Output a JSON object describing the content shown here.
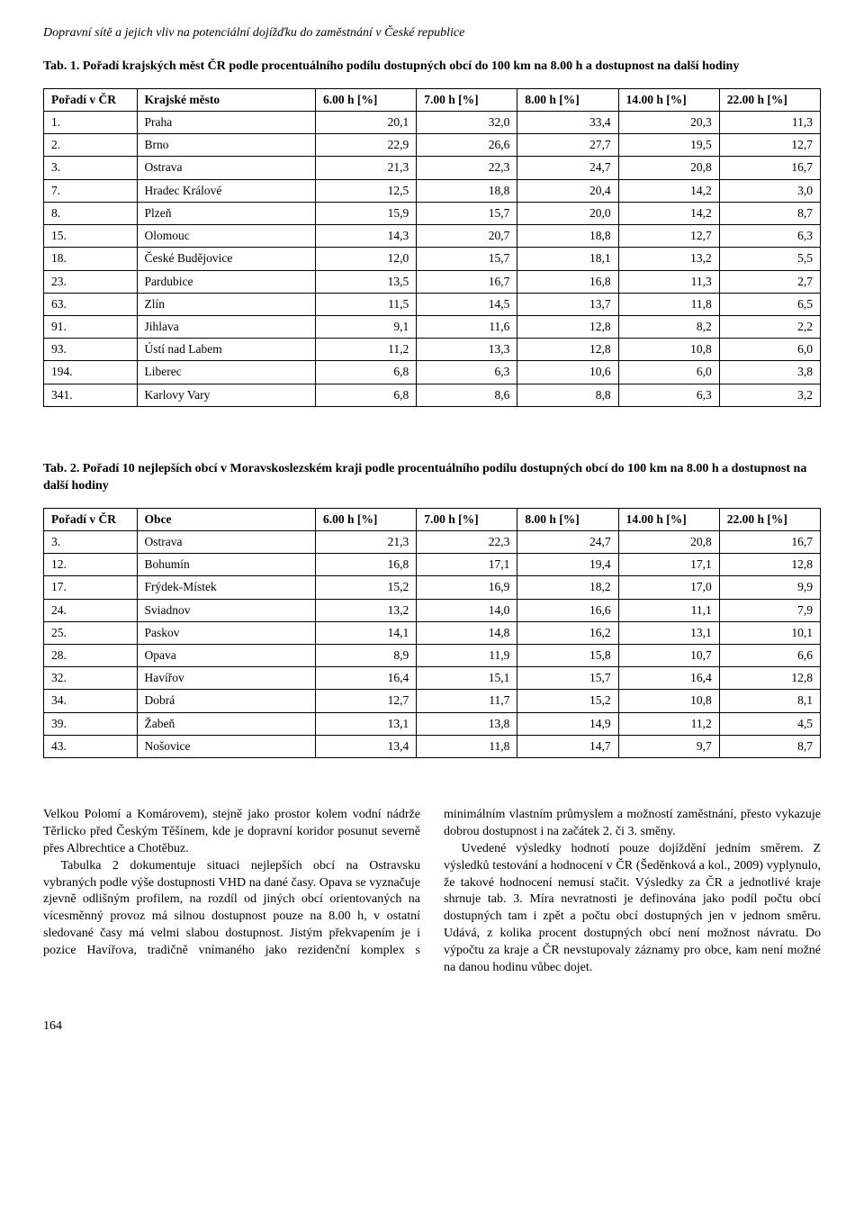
{
  "runningHead": "Dopravní sítě a jejich vliv na potenciální dojížďku do zaměstnání v České republice",
  "table1": {
    "caption": "Tab. 1. Pořadí krajských měst ČR podle procentuálního podílu dostupných obcí do 100 km na 8.00 h a dostupnost na další hodiny",
    "headers": [
      "Pořadí v ČR",
      "Krajské město",
      "6.00 h [%]",
      "7.00 h [%]",
      "8.00 h [%]",
      "14.00 h [%]",
      "22.00 h [%]"
    ],
    "rows": [
      [
        "1.",
        "Praha",
        "20,1",
        "32,0",
        "33,4",
        "20,3",
        "11,3"
      ],
      [
        "2.",
        "Brno",
        "22,9",
        "26,6",
        "27,7",
        "19,5",
        "12,7"
      ],
      [
        "3.",
        "Ostrava",
        "21,3",
        "22,3",
        "24,7",
        "20,8",
        "16,7"
      ],
      [
        "7.",
        "Hradec Králové",
        "12,5",
        "18,8",
        "20,4",
        "14,2",
        "3,0"
      ],
      [
        "8.",
        "Plzeň",
        "15,9",
        "15,7",
        "20,0",
        "14,2",
        "8,7"
      ],
      [
        "15.",
        "Olomouc",
        "14,3",
        "20,7",
        "18,8",
        "12,7",
        "6,3"
      ],
      [
        "18.",
        "České Budějovice",
        "12,0",
        "15,7",
        "18,1",
        "13,2",
        "5,5"
      ],
      [
        "23.",
        "Pardubice",
        "13,5",
        "16,7",
        "16,8",
        "11,3",
        "2,7"
      ],
      [
        "63.",
        "Zlín",
        "11,5",
        "14,5",
        "13,7",
        "11,8",
        "6,5"
      ],
      [
        "91.",
        "Jihlava",
        "9,1",
        "11,6",
        "12,8",
        "8,2",
        "2,2"
      ],
      [
        "93.",
        "Ústí nad Labem",
        "11,2",
        "13,3",
        "12,8",
        "10,8",
        "6,0"
      ],
      [
        "194.",
        "Liberec",
        "6,8",
        "6,3",
        "10,6",
        "6,0",
        "3,8"
      ],
      [
        "341.",
        "Karlovy Vary",
        "6,8",
        "8,6",
        "8,8",
        "6,3",
        "3,2"
      ]
    ]
  },
  "table2": {
    "caption": "Tab. 2. Pořadí 10 nejlepších obcí v Moravskoslezském kraji podle procentuálního podílu dostupných obcí do 100 km na 8.00 h a dostupnost na další hodiny",
    "headers": [
      "Pořadí v ČR",
      "Obce",
      "6.00 h [%]",
      "7.00 h [%]",
      "8.00 h [%]",
      "14.00 h [%]",
      "22.00 h [%]"
    ],
    "rows": [
      [
        "3.",
        "Ostrava",
        "21,3",
        "22,3",
        "24,7",
        "20,8",
        "16,7"
      ],
      [
        "12.",
        "Bohumín",
        "16,8",
        "17,1",
        "19,4",
        "17,1",
        "12,8"
      ],
      [
        "17.",
        "Frýdek-Místek",
        "15,2",
        "16,9",
        "18,2",
        "17,0",
        "9,9"
      ],
      [
        "24.",
        "Sviadnov",
        "13,2",
        "14,0",
        "16,6",
        "11,1",
        "7,9"
      ],
      [
        "25.",
        "Paskov",
        "14,1",
        "14,8",
        "16,2",
        "13,1",
        "10,1"
      ],
      [
        "28.",
        "Opava",
        "8,9",
        "11,9",
        "15,8",
        "10,7",
        "6,6"
      ],
      [
        "32.",
        "Havířov",
        "16,4",
        "15,1",
        "15,7",
        "16,4",
        "12,8"
      ],
      [
        "34.",
        "Dobrá",
        "12,7",
        "11,7",
        "15,2",
        "10,8",
        "8,1"
      ],
      [
        "39.",
        "Žabeň",
        "13,1",
        "13,8",
        "14,9",
        "11,2",
        "4,5"
      ],
      [
        "43.",
        "Nošovice",
        "13,4",
        "11,8",
        "14,7",
        "9,7",
        "8,7"
      ]
    ]
  },
  "colWidths": [
    "12%",
    "23%",
    "13%",
    "13%",
    "13%",
    "13%",
    "13%"
  ],
  "body": {
    "p1": "Velkou Polomí a Komárovem), stejně jako prostor kolem vodní nádrže Těrlicko před Českým Těšínem, kde je dopravní koridor posunut severně přes Albrechtice a Chotěbuz.",
    "p2": "Tabulka 2 dokumentuje situaci nejlepších obcí na Ostravsku vybraných podle výše dostupnosti VHD na dané časy. Opava se vyznačuje zjevně odlišným profilem, na rozdíl od jiných obcí orientovaných na vícesměnný provoz má silnou dostupnost pouze na 8.00 h, v ostatní sledované časy má velmi slabou dostupnost. Jistým překvapením je i pozice Havířova, tradičně vnímaného jako rezidenční komplex s minimálním vlastním průmyslem a možností zaměstnání, přesto vykazuje dobrou dostupnost i na začátek 2. či 3. směny.",
    "p3": "Uvedené výsledky hodnotí pouze dojíždění jedním směrem. Z výsledků testování a hodnocení v ČR (Šeděnková a kol., 2009) vyplynulo, že takové hodnocení nemusí stačit. Výsledky za ČR a jednotlivé kraje shrnuje tab. 3. Míra nevratnosti je definována jako podíl počtu obcí dostupných tam i zpět a počtu obcí dostupných jen v jednom směru. Udává, z kolika procent dostupných obcí není možnost návratu. Do výpočtu za kraje a ČR nevstupovaly záznamy pro obce, kam není možné na danou hodinu vůbec dojet."
  },
  "pageNumber": "164"
}
